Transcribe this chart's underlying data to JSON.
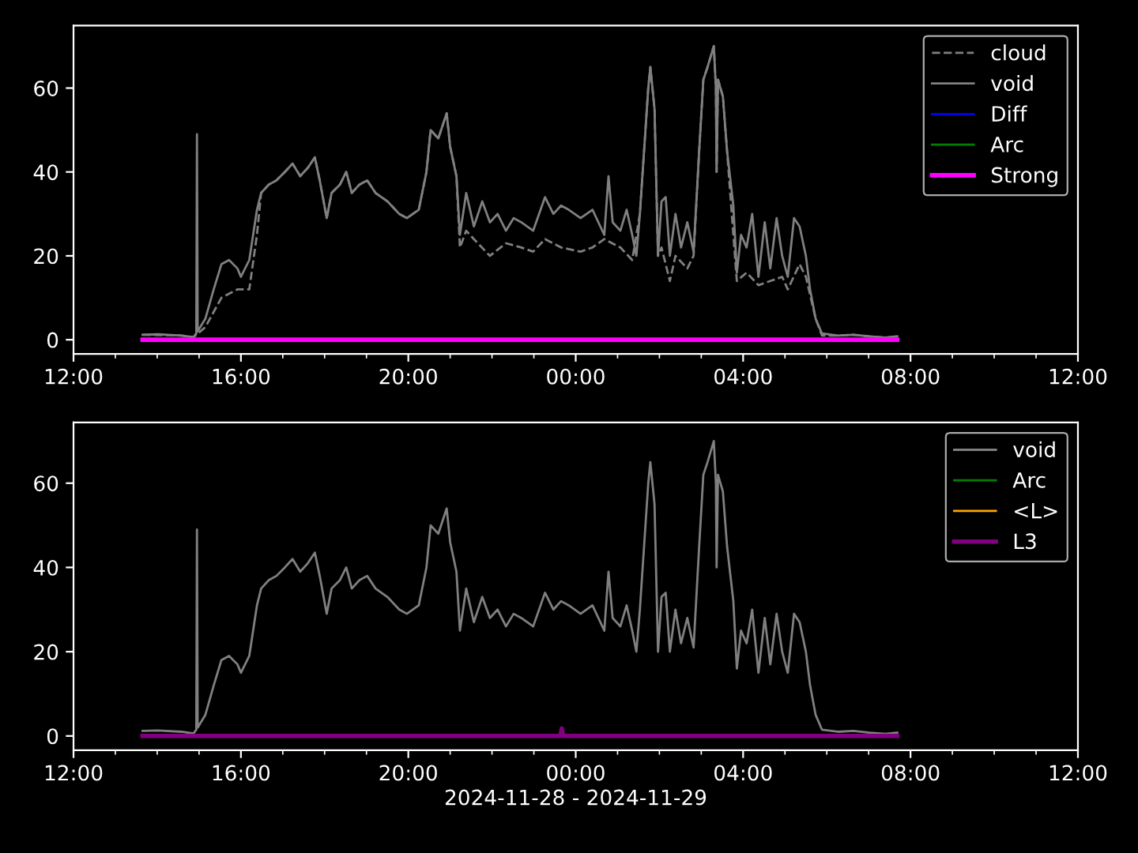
{
  "chart_data": [
    {
      "type": "line",
      "legend": "top right",
      "grid": false,
      "ylim": [
        -3.4,
        74.9
      ],
      "yticks": [
        0,
        20,
        40,
        60
      ],
      "xlim": [
        "2024-11-28T12:00",
        "2024-11-29T12:00"
      ],
      "xticks": [
        {
          "value": "2024-11-28T12:00",
          "label": "12:00"
        },
        {
          "value": "2024-11-28T16:00",
          "label": "16:00"
        },
        {
          "value": "2024-11-28T20:00",
          "label": "20:00"
        },
        {
          "value": "2024-11-29T00:00",
          "label": "00:00"
        },
        {
          "value": "2024-11-29T04:00",
          "label": "04:00"
        },
        {
          "value": "2024-11-29T08:00",
          "label": "08:00"
        },
        {
          "value": "2024-11-29T12:00",
          "label": "12:00"
        }
      ],
      "series": [
        {
          "name": "cloud",
          "color": "#808080",
          "line_style": "dashed",
          "x": [
            "2024-11-28T13:39",
            "2024-11-28T14:35",
            "2024-11-28T14:52",
            "2024-11-28T15:09",
            "2024-11-28T15:32",
            "2024-11-28T15:55",
            "2024-11-28T16:12",
            "2024-11-28T16:23",
            "2024-11-28T16:29",
            "2024-11-28T16:40",
            "2024-11-28T16:51",
            "2024-11-28T17:03",
            "2024-11-28T17:14",
            "2024-11-28T17:25",
            "2024-11-28T17:36",
            "2024-11-28T17:46",
            "2024-11-28T17:53",
            "2024-11-28T18:03",
            "2024-11-28T18:10",
            "2024-11-28T18:22",
            "2024-11-28T18:31",
            "2024-11-28T18:39",
            "2024-11-28T18:50",
            "2024-11-28T19:01",
            "2024-11-28T19:13",
            "2024-11-28T19:30",
            "2024-11-28T19:47",
            "2024-11-28T19:58",
            "2024-11-28T20:15",
            "2024-11-28T20:26",
            "2024-11-28T20:32",
            "2024-11-28T20:43",
            "2024-11-28T20:55",
            "2024-11-28T21:00",
            "2024-11-28T21:09",
            "2024-11-28T21:14",
            "2024-11-28T21:23",
            "2024-11-28T21:34",
            "2024-11-28T21:57",
            "2024-11-28T22:20",
            "2024-11-28T22:42",
            "2024-11-28T22:59",
            "2024-11-28T23:16",
            "2024-11-28T23:39",
            "2024-11-29T00:07",
            "2024-11-29T00:24",
            "2024-11-29T00:41",
            "2024-11-29T01:04",
            "2024-11-29T01:21",
            "2024-11-29T01:32",
            "2024-11-29T01:38",
            "2024-11-29T01:44",
            "2024-11-29T01:47",
            "2024-11-29T01:53",
            "2024-11-29T01:58",
            "2024-11-29T02:03",
            "2024-11-29T02:15",
            "2024-11-29T02:23",
            "2024-11-29T02:40",
            "2024-11-29T02:49",
            "2024-11-29T02:57",
            "2024-11-29T03:03",
            "2024-11-29T03:09",
            "2024-11-29T03:18",
            "2024-11-29T03:21",
            "2024-11-29T03:22",
            "2024-11-29T03:24",
            "2024-11-29T03:31",
            "2024-11-29T03:37",
            "2024-11-29T03:46",
            "2024-11-29T03:51",
            "2024-11-29T04:05",
            "2024-11-29T04:22",
            "2024-11-29T04:39",
            "2024-11-29T04:56",
            "2024-11-29T05:04",
            "2024-11-29T05:21",
            "2024-11-29T05:30",
            "2024-11-29T05:44",
            "2024-11-29T05:53",
            "2024-11-29T06:16",
            "2024-11-29T06:38",
            "2024-11-29T07:01",
            "2024-11-29T07:24",
            "2024-11-29T07:41"
          ],
          "values": [
            1.2,
            1.0,
            0.6,
            3,
            10,
            12,
            12,
            25,
            35,
            37,
            38,
            40,
            42,
            39,
            41,
            43.5,
            38,
            29,
            35,
            37,
            40,
            35,
            37,
            38,
            35,
            33,
            30,
            29,
            31,
            40,
            50,
            48,
            54,
            46,
            39,
            22,
            26,
            24,
            20,
            23,
            22,
            21,
            24,
            22,
            21,
            22,
            24,
            22,
            19,
            30,
            45,
            60,
            65,
            55,
            20,
            22,
            14,
            20,
            17,
            20,
            45,
            62,
            65,
            70,
            60,
            40,
            62,
            58,
            45,
            25,
            14,
            16,
            13,
            14,
            15,
            12,
            18,
            15,
            5,
            1.0,
            1.0,
            1.2,
            0.8,
            0.5,
            0.8
          ]
        },
        {
          "name": "void",
          "color": "#808080",
          "line_style": "solid",
          "x": [
            "2024-11-28T13:39",
            "2024-11-28T14:01",
            "2024-11-28T14:35",
            "2024-11-28T14:52",
            "2024-11-28T14:56",
            "2024-11-28T14:57",
            "2024-11-28T14:58",
            "2024-11-28T15:09",
            "2024-11-28T15:21",
            "2024-11-28T15:32",
            "2024-11-28T15:43",
            "2024-11-28T15:55",
            "2024-11-28T16:00",
            "2024-11-28T16:12",
            "2024-11-28T16:23",
            "2024-11-28T16:29",
            "2024-11-28T16:40",
            "2024-11-28T16:51",
            "2024-11-28T17:03",
            "2024-11-28T17:14",
            "2024-11-28T17:25",
            "2024-11-28T17:36",
            "2024-11-28T17:46",
            "2024-11-28T17:53",
            "2024-11-28T18:03",
            "2024-11-28T18:10",
            "2024-11-28T18:22",
            "2024-11-28T18:31",
            "2024-11-28T18:39",
            "2024-11-28T18:50",
            "2024-11-28T19:01",
            "2024-11-28T19:13",
            "2024-11-28T19:30",
            "2024-11-28T19:47",
            "2024-11-28T19:58",
            "2024-11-28T20:15",
            "2024-11-28T20:26",
            "2024-11-28T20:32",
            "2024-11-28T20:43",
            "2024-11-28T20:55",
            "2024-11-28T21:00",
            "2024-11-28T21:09",
            "2024-11-28T21:14",
            "2024-11-28T21:23",
            "2024-11-28T21:34",
            "2024-11-28T21:46",
            "2024-11-28T21:57",
            "2024-11-28T22:08",
            "2024-11-28T22:20",
            "2024-11-28T22:31",
            "2024-11-28T22:42",
            "2024-11-28T22:59",
            "2024-11-28T23:16",
            "2024-11-28T23:28",
            "2024-11-28T23:39",
            "2024-11-28T23:50",
            "2024-11-29T00:07",
            "2024-11-29T00:24",
            "2024-11-29T00:41",
            "2024-11-29T00:47",
            "2024-11-29T00:53",
            "2024-11-29T01:04",
            "2024-11-29T01:13",
            "2024-11-29T01:21",
            "2024-11-29T01:27",
            "2024-11-29T01:32",
            "2024-11-29T01:38",
            "2024-11-29T01:44",
            "2024-11-29T01:47",
            "2024-11-29T01:53",
            "2024-11-29T01:58",
            "2024-11-29T02:03",
            "2024-11-29T02:09",
            "2024-11-29T02:15",
            "2024-11-29T02:23",
            "2024-11-29T02:31",
            "2024-11-29T02:40",
            "2024-11-29T02:49",
            "2024-11-29T02:57",
            "2024-11-29T03:03",
            "2024-11-29T03:09",
            "2024-11-29T03:18",
            "2024-11-29T03:21",
            "2024-11-29T03:22",
            "2024-11-29T03:24",
            "2024-11-29T03:31",
            "2024-11-29T03:37",
            "2024-11-29T03:46",
            "2024-11-29T03:51",
            "2024-11-29T03:57",
            "2024-11-29T04:05",
            "2024-11-29T04:13",
            "2024-11-29T04:22",
            "2024-11-29T04:31",
            "2024-11-29T04:39",
            "2024-11-29T04:48",
            "2024-11-29T04:56",
            "2024-11-29T05:04",
            "2024-11-29T05:13",
            "2024-11-29T05:21",
            "2024-11-29T05:30",
            "2024-11-29T05:36",
            "2024-11-29T05:44",
            "2024-11-29T05:53",
            "2024-11-29T06:16",
            "2024-11-29T06:38",
            "2024-11-29T07:01",
            "2024-11-29T07:24",
            "2024-11-29T07:41"
          ],
          "values": [
            1.2,
            1.3,
            1.0,
            0.6,
            1.5,
            49,
            2,
            5,
            12,
            18,
            19,
            17,
            15,
            19,
            31,
            35,
            37,
            38,
            40,
            42,
            39,
            41,
            43.5,
            38,
            29,
            35,
            37,
            40,
            35,
            37,
            38,
            35,
            33,
            30,
            29,
            31,
            40,
            50,
            48,
            54,
            46,
            39,
            25,
            35,
            27,
            33,
            28,
            30,
            26,
            29,
            28,
            26,
            34,
            30,
            32,
            31,
            29,
            31,
            25,
            39,
            28,
            26,
            31,
            25,
            20,
            30,
            45,
            60,
            65,
            55,
            20,
            33,
            34,
            20,
            30,
            22,
            28,
            21,
            45,
            62,
            65,
            70,
            60,
            40,
            62,
            58,
            45,
            32,
            16,
            25,
            22,
            30,
            15,
            28,
            17,
            29,
            20,
            15,
            29,
            27,
            20,
            12,
            5,
            1.5,
            1.0,
            1.2,
            0.8,
            0.5,
            0.8
          ]
        },
        {
          "name": "Diff",
          "color": "#0000ff",
          "line_style": "solid"
        },
        {
          "name": "Arc",
          "color": "#008000",
          "line_style": "solid"
        },
        {
          "name": "Strong",
          "color": "#ff00ff",
          "line_style": "solid",
          "x": [
            "2024-11-28T13:39",
            "2024-11-29T07:41"
          ],
          "values": [
            0,
            0
          ]
        }
      ]
    },
    {
      "type": "line",
      "legend": "top right",
      "grid": false,
      "ylim": [
        -3.4,
        74.4
      ],
      "yticks": [
        0,
        20,
        40,
        60
      ],
      "xlim": [
        "2024-11-28T12:00",
        "2024-11-29T12:00"
      ],
      "xticks": [
        {
          "value": "2024-11-28T12:00",
          "label": "12:00"
        },
        {
          "value": "2024-11-28T16:00",
          "label": "16:00"
        },
        {
          "value": "2024-11-28T20:00",
          "label": "20:00"
        },
        {
          "value": "2024-11-29T00:00",
          "label": "00:00"
        },
        {
          "value": "2024-11-29T04:00",
          "label": "04:00"
        },
        {
          "value": "2024-11-29T08:00",
          "label": "08:00"
        },
        {
          "value": "2024-11-29T12:00",
          "label": "12:00"
        }
      ],
      "xlabel": "2024-11-28 - 2024-11-29",
      "series": [
        {
          "name": "void",
          "color": "#808080",
          "line_style": "solid",
          "x": [
            "2024-11-28T13:39",
            "2024-11-28T14:01",
            "2024-11-28T14:35",
            "2024-11-28T14:52",
            "2024-11-28T14:56",
            "2024-11-28T14:57",
            "2024-11-28T14:58",
            "2024-11-28T15:09",
            "2024-11-28T15:21",
            "2024-11-28T15:32",
            "2024-11-28T15:43",
            "2024-11-28T15:55",
            "2024-11-28T16:00",
            "2024-11-28T16:12",
            "2024-11-28T16:23",
            "2024-11-28T16:29",
            "2024-11-28T16:40",
            "2024-11-28T16:51",
            "2024-11-28T17:03",
            "2024-11-28T17:14",
            "2024-11-28T17:25",
            "2024-11-28T17:36",
            "2024-11-28T17:46",
            "2024-11-28T17:53",
            "2024-11-28T18:03",
            "2024-11-28T18:10",
            "2024-11-28T18:22",
            "2024-11-28T18:31",
            "2024-11-28T18:39",
            "2024-11-28T18:50",
            "2024-11-28T19:01",
            "2024-11-28T19:13",
            "2024-11-28T19:30",
            "2024-11-28T19:47",
            "2024-11-28T19:58",
            "2024-11-28T20:15",
            "2024-11-28T20:26",
            "2024-11-28T20:32",
            "2024-11-28T20:43",
            "2024-11-28T20:55",
            "2024-11-28T21:00",
            "2024-11-28T21:09",
            "2024-11-28T21:14",
            "2024-11-28T21:23",
            "2024-11-28T21:34",
            "2024-11-28T21:46",
            "2024-11-28T21:57",
            "2024-11-28T22:08",
            "2024-11-28T22:20",
            "2024-11-28T22:31",
            "2024-11-28T22:42",
            "2024-11-28T22:59",
            "2024-11-28T23:16",
            "2024-11-28T23:28",
            "2024-11-28T23:39",
            "2024-11-28T23:50",
            "2024-11-29T00:07",
            "2024-11-29T00:24",
            "2024-11-29T00:41",
            "2024-11-29T00:47",
            "2024-11-29T00:53",
            "2024-11-29T01:04",
            "2024-11-29T01:13",
            "2024-11-29T01:21",
            "2024-11-29T01:27",
            "2024-11-29T01:32",
            "2024-11-29T01:38",
            "2024-11-29T01:44",
            "2024-11-29T01:47",
            "2024-11-29T01:53",
            "2024-11-29T01:58",
            "2024-11-29T02:03",
            "2024-11-29T02:09",
            "2024-11-29T02:15",
            "2024-11-29T02:23",
            "2024-11-29T02:31",
            "2024-11-29T02:40",
            "2024-11-29T02:49",
            "2024-11-29T02:57",
            "2024-11-29T03:03",
            "2024-11-29T03:09",
            "2024-11-29T03:18",
            "2024-11-29T03:21",
            "2024-11-29T03:22",
            "2024-11-29T03:24",
            "2024-11-29T03:31",
            "2024-11-29T03:37",
            "2024-11-29T03:46",
            "2024-11-29T03:51",
            "2024-11-29T03:57",
            "2024-11-29T04:05",
            "2024-11-29T04:13",
            "2024-11-29T04:22",
            "2024-11-29T04:31",
            "2024-11-29T04:39",
            "2024-11-29T04:48",
            "2024-11-29T04:56",
            "2024-11-29T05:04",
            "2024-11-29T05:13",
            "2024-11-29T05:21",
            "2024-11-29T05:30",
            "2024-11-29T05:36",
            "2024-11-29T05:44",
            "2024-11-29T05:53",
            "2024-11-29T06:16",
            "2024-11-29T06:38",
            "2024-11-29T07:01",
            "2024-11-29T07:24",
            "2024-11-29T07:41"
          ],
          "values": [
            1.2,
            1.3,
            1.0,
            0.6,
            1.5,
            49,
            2,
            5,
            12,
            18,
            19,
            17,
            15,
            19,
            31,
            35,
            37,
            38,
            40,
            42,
            39,
            41,
            43.5,
            38,
            29,
            35,
            37,
            40,
            35,
            37,
            38,
            35,
            33,
            30,
            29,
            31,
            40,
            50,
            48,
            54,
            46,
            39,
            25,
            35,
            27,
            33,
            28,
            30,
            26,
            29,
            28,
            26,
            34,
            30,
            32,
            31,
            29,
            31,
            25,
            39,
            28,
            26,
            31,
            25,
            20,
            30,
            45,
            60,
            65,
            55,
            20,
            33,
            34,
            20,
            30,
            22,
            28,
            21,
            45,
            62,
            65,
            70,
            60,
            40,
            62,
            58,
            45,
            32,
            16,
            25,
            22,
            30,
            15,
            28,
            17,
            29,
            20,
            15,
            29,
            27,
            20,
            12,
            5,
            1.5,
            1.0,
            1.2,
            0.8,
            0.5,
            0.8
          ]
        },
        {
          "name": "Arc",
          "color": "#008000",
          "line_style": "solid"
        },
        {
          "name": "<L>",
          "color": "#ffa500",
          "line_style": "solid"
        },
        {
          "name": "L3",
          "color": "#800080",
          "line_style": "solid",
          "x": [
            "2024-11-28T13:39",
            "2024-11-28T23:38",
            "2024-11-28T23:40",
            "2024-11-28T23:42",
            "2024-11-29T07:41"
          ],
          "values": [
            0,
            0,
            1.8,
            0,
            0
          ]
        }
      ]
    }
  ]
}
